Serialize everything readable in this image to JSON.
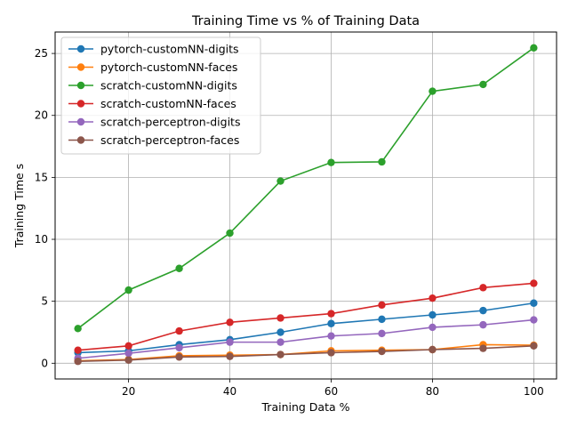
{
  "chart_data": {
    "type": "line",
    "title": "Training Time vs % of Training Data",
    "xlabel": "Training Data %",
    "ylabel": "Training Time s",
    "xlim": [
      5.5,
      104.5
    ],
    "ylim": [
      -1.27,
      26.73
    ],
    "xticks": [
      20,
      40,
      60,
      80,
      100
    ],
    "yticks": [
      0,
      5,
      10,
      15,
      20,
      25
    ],
    "grid": true,
    "legend_position": "upper left",
    "x": [
      10,
      20,
      30,
      40,
      50,
      60,
      70,
      80,
      90,
      100
    ],
    "series": [
      {
        "name": "pytorch-customNN-digits",
        "color": "#1f77b4",
        "values": [
          0.85,
          1.0,
          1.5,
          1.9,
          2.5,
          3.2,
          3.55,
          3.9,
          4.25,
          4.85
        ]
      },
      {
        "name": "pytorch-customNN-faces",
        "color": "#ff7f0e",
        "values": [
          0.2,
          0.3,
          0.6,
          0.65,
          0.7,
          1.0,
          1.05,
          1.1,
          1.5,
          1.45
        ]
      },
      {
        "name": "scratch-customNN-digits",
        "color": "#2ca02c",
        "values": [
          2.8,
          5.9,
          7.65,
          10.5,
          14.7,
          16.2,
          16.25,
          21.95,
          22.5,
          25.45
        ]
      },
      {
        "name": "scratch-customNN-faces",
        "color": "#d62728",
        "values": [
          1.05,
          1.4,
          2.6,
          3.3,
          3.65,
          4.0,
          4.7,
          5.25,
          6.1,
          6.45
        ]
      },
      {
        "name": "scratch-perceptron-digits",
        "color": "#9467bd",
        "values": [
          0.4,
          0.8,
          1.25,
          1.7,
          1.7,
          2.2,
          2.4,
          2.9,
          3.1,
          3.5
        ]
      },
      {
        "name": "scratch-perceptron-faces",
        "color": "#8c564b",
        "values": [
          0.15,
          0.25,
          0.5,
          0.55,
          0.7,
          0.85,
          0.95,
          1.1,
          1.2,
          1.4
        ]
      }
    ]
  }
}
